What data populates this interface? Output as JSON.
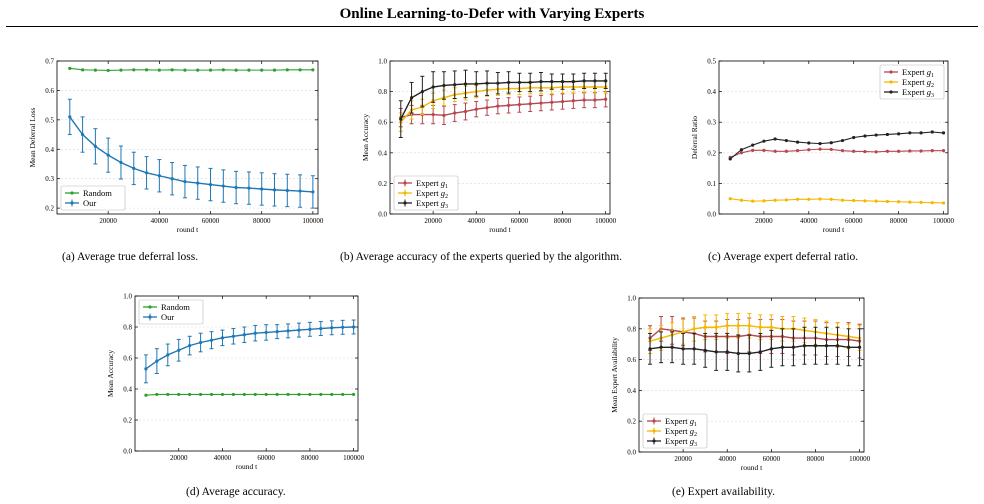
{
  "title": "Online Learning-to-Defer with Varying Experts",
  "captions": {
    "a": "(a) Average true deferral loss.",
    "b": "(b) Average accuracy of the experts queried by the algorithm.",
    "c": "(c) Average expert deferral ratio.",
    "d": "(d) Average accuracy.",
    "e": "(e) Expert availability."
  },
  "colors": {
    "random": "#2ca02c",
    "our": "#1f77b4",
    "g1": "#b5474f",
    "g2": "#f5b800",
    "g3": "#222222"
  },
  "chart_data": [
    {
      "id": "a",
      "type": "line",
      "xlabel": "round t",
      "ylabel": "Mean Deferral Loss",
      "xlim": [
        0,
        102000
      ],
      "ylim": [
        0.18,
        0.7
      ],
      "yticks": [
        0.2,
        0.3,
        0.4,
        0.5,
        0.6,
        0.7
      ],
      "ytick_labels": [
        "0.2",
        "0.3",
        "0.4",
        "0.5",
        "0.6",
        "0.7"
      ],
      "xticks": [
        20000,
        40000,
        60000,
        80000,
        100000
      ],
      "xtick_labels": [
        "20000",
        "40000",
        "60000",
        "80000",
        "100000"
      ],
      "legend_position": "bottom-left",
      "x": [
        5000,
        10000,
        15000,
        20000,
        25000,
        30000,
        35000,
        40000,
        45000,
        50000,
        55000,
        60000,
        65000,
        70000,
        75000,
        80000,
        85000,
        90000,
        95000,
        100000
      ],
      "series": [
        {
          "name": "Random",
          "color": "random",
          "marker": "dot",
          "values": [
            0.675,
            0.67,
            0.669,
            0.668,
            0.669,
            0.67,
            0.67,
            0.669,
            0.67,
            0.669,
            0.669,
            0.669,
            0.67,
            0.669,
            0.669,
            0.669,
            0.669,
            0.67,
            0.67,
            0.67
          ]
        },
        {
          "name": "Our",
          "color": "our",
          "marker": "errorbar",
          "values": [
            0.51,
            0.45,
            0.41,
            0.38,
            0.355,
            0.335,
            0.32,
            0.31,
            0.3,
            0.29,
            0.285,
            0.28,
            0.275,
            0.27,
            0.268,
            0.265,
            0.262,
            0.26,
            0.258,
            0.255
          ],
          "errors": [
            0.06,
            0.06,
            0.06,
            0.058,
            0.056,
            0.055,
            0.055,
            0.055,
            0.055,
            0.055,
            0.055,
            0.055,
            0.055,
            0.055,
            0.055,
            0.055,
            0.055,
            0.055,
            0.055,
            0.055
          ]
        }
      ]
    },
    {
      "id": "b",
      "type": "line",
      "xlabel": "round t",
      "ylabel": "Mean Accuracy",
      "xlim": [
        0,
        102000
      ],
      "ylim": [
        0.0,
        1.0
      ],
      "yticks": [
        0.0,
        0.2,
        0.4,
        0.6,
        0.8,
        1.0
      ],
      "ytick_labels": [
        "0.0",
        "0.2",
        "0.4",
        "0.6",
        "0.8",
        "1.0"
      ],
      "xticks": [
        20000,
        40000,
        60000,
        80000,
        100000
      ],
      "xtick_labels": [
        "20000",
        "40000",
        "60000",
        "80000",
        "100000"
      ],
      "legend_position": "bottom-left",
      "x": [
        5000,
        10000,
        15000,
        20000,
        25000,
        30000,
        35000,
        40000,
        45000,
        50000,
        55000,
        60000,
        65000,
        70000,
        75000,
        80000,
        85000,
        90000,
        95000,
        100000
      ],
      "series": [
        {
          "name": "Expert g1",
          "sub": "1",
          "color": "g1",
          "marker": "errorbar",
          "values": [
            0.63,
            0.65,
            0.65,
            0.65,
            0.645,
            0.66,
            0.67,
            0.685,
            0.695,
            0.705,
            0.71,
            0.715,
            0.72,
            0.725,
            0.73,
            0.735,
            0.74,
            0.745,
            0.745,
            0.75
          ],
          "errors": [
            0.06,
            0.06,
            0.06,
            0.06,
            0.06,
            0.055,
            0.055,
            0.05,
            0.05,
            0.05,
            0.05,
            0.05,
            0.05,
            0.05,
            0.05,
            0.05,
            0.05,
            0.05,
            0.05,
            0.05
          ]
        },
        {
          "name": "Expert g2",
          "sub": "2",
          "color": "g2",
          "marker": "errorbar",
          "values": [
            0.6,
            0.68,
            0.7,
            0.74,
            0.76,
            0.78,
            0.79,
            0.8,
            0.81,
            0.815,
            0.82,
            0.82,
            0.825,
            0.825,
            0.825,
            0.83,
            0.83,
            0.83,
            0.83,
            0.83
          ],
          "errors": [
            0.06,
            0.06,
            0.05,
            0.05,
            0.05,
            0.045,
            0.045,
            0.04,
            0.04,
            0.04,
            0.04,
            0.04,
            0.04,
            0.04,
            0.04,
            0.04,
            0.04,
            0.04,
            0.04,
            0.04
          ]
        },
        {
          "name": "Expert g3",
          "sub": "3",
          "color": "g3",
          "marker": "errorbar",
          "values": [
            0.62,
            0.76,
            0.8,
            0.83,
            0.84,
            0.845,
            0.85,
            0.85,
            0.855,
            0.855,
            0.86,
            0.86,
            0.86,
            0.865,
            0.865,
            0.865,
            0.865,
            0.87,
            0.87,
            0.87
          ],
          "errors": [
            0.12,
            0.1,
            0.1,
            0.1,
            0.09,
            0.09,
            0.09,
            0.08,
            0.08,
            0.07,
            0.07,
            0.06,
            0.06,
            0.06,
            0.05,
            0.05,
            0.05,
            0.05,
            0.05,
            0.05
          ]
        }
      ]
    },
    {
      "id": "c",
      "type": "line",
      "xlabel": "round t",
      "ylabel": "Deferral Ratio",
      "xlim": [
        0,
        102000
      ],
      "ylim": [
        0.0,
        0.5
      ],
      "yticks": [
        0.0,
        0.1,
        0.2,
        0.3,
        0.4,
        0.5
      ],
      "ytick_labels": [
        "0.0",
        "0.1",
        "0.2",
        "0.3",
        "0.4",
        "0.5"
      ],
      "xticks": [
        20000,
        40000,
        60000,
        80000,
        100000
      ],
      "xtick_labels": [
        "20000",
        "40000",
        "60000",
        "80000",
        "100000"
      ],
      "legend_position": "top-right",
      "x": [
        5000,
        10000,
        15000,
        20000,
        25000,
        30000,
        35000,
        40000,
        45000,
        50000,
        55000,
        60000,
        65000,
        70000,
        75000,
        80000,
        85000,
        90000,
        95000,
        100000
      ],
      "series": [
        {
          "name": "Expert g1",
          "sub": "1",
          "color": "g1",
          "marker": "dot",
          "values": [
            0.185,
            0.2,
            0.208,
            0.208,
            0.205,
            0.205,
            0.207,
            0.21,
            0.212,
            0.211,
            0.207,
            0.205,
            0.204,
            0.203,
            0.205,
            0.205,
            0.206,
            0.206,
            0.207,
            0.207
          ]
        },
        {
          "name": "Expert g2",
          "sub": "2",
          "color": "g2",
          "marker": "dot",
          "values": [
            0.05,
            0.045,
            0.042,
            0.043,
            0.045,
            0.046,
            0.048,
            0.048,
            0.049,
            0.048,
            0.045,
            0.044,
            0.043,
            0.042,
            0.041,
            0.04,
            0.039,
            0.038,
            0.037,
            0.036
          ]
        },
        {
          "name": "Expert g3",
          "sub": "3",
          "color": "g3",
          "marker": "dot",
          "values": [
            0.18,
            0.21,
            0.225,
            0.238,
            0.245,
            0.24,
            0.235,
            0.232,
            0.23,
            0.233,
            0.24,
            0.25,
            0.255,
            0.258,
            0.26,
            0.262,
            0.265,
            0.265,
            0.268,
            0.265
          ]
        }
      ]
    },
    {
      "id": "d",
      "type": "line",
      "xlabel": "round t",
      "ylabel": "Mean Accuracy",
      "xlim": [
        0,
        102000
      ],
      "ylim": [
        0.0,
        1.0
      ],
      "yticks": [
        0.0,
        0.2,
        0.4,
        0.6,
        0.8,
        1.0
      ],
      "ytick_labels": [
        "0.0",
        "0.2",
        "0.4",
        "0.6",
        "0.8",
        "1.0"
      ],
      "xticks": [
        20000,
        40000,
        60000,
        80000,
        100000
      ],
      "xtick_labels": [
        "20000",
        "40000",
        "60000",
        "80000",
        "100000"
      ],
      "legend_position": "top-left",
      "x": [
        5000,
        10000,
        15000,
        20000,
        25000,
        30000,
        35000,
        40000,
        45000,
        50000,
        55000,
        60000,
        65000,
        70000,
        75000,
        80000,
        85000,
        90000,
        95000,
        100000
      ],
      "series": [
        {
          "name": "Random",
          "color": "random",
          "marker": "dot",
          "values": [
            0.36,
            0.365,
            0.365,
            0.365,
            0.365,
            0.365,
            0.365,
            0.365,
            0.365,
            0.365,
            0.365,
            0.365,
            0.365,
            0.365,
            0.365,
            0.365,
            0.365,
            0.365,
            0.365,
            0.365
          ]
        },
        {
          "name": "Our",
          "color": "our",
          "marker": "errorbar",
          "values": [
            0.53,
            0.58,
            0.62,
            0.65,
            0.68,
            0.7,
            0.715,
            0.73,
            0.74,
            0.75,
            0.76,
            0.765,
            0.77,
            0.775,
            0.78,
            0.785,
            0.79,
            0.795,
            0.798,
            0.8
          ],
          "errors": [
            0.09,
            0.08,
            0.07,
            0.07,
            0.06,
            0.06,
            0.055,
            0.05,
            0.05,
            0.05,
            0.05,
            0.05,
            0.045,
            0.045,
            0.045,
            0.045,
            0.045,
            0.045,
            0.045,
            0.045
          ]
        }
      ]
    },
    {
      "id": "e",
      "type": "line",
      "xlabel": "round t",
      "ylabel": "Mean Expert Availability",
      "xlim": [
        0,
        102000
      ],
      "ylim": [
        0.0,
        1.0
      ],
      "yticks": [
        0.0,
        0.2,
        0.4,
        0.6,
        0.8,
        1.0
      ],
      "ytick_labels": [
        "0.0",
        "0.2",
        "0.4",
        "0.6",
        "0.8",
        "1.0"
      ],
      "xticks": [
        20000,
        40000,
        60000,
        80000,
        100000
      ],
      "xtick_labels": [
        "20000",
        "40000",
        "60000",
        "80000",
        "100000"
      ],
      "legend_position": "bottom-left",
      "x": [
        5000,
        10000,
        15000,
        20000,
        25000,
        30000,
        35000,
        40000,
        45000,
        50000,
        55000,
        60000,
        65000,
        70000,
        75000,
        80000,
        85000,
        90000,
        95000,
        100000
      ],
      "series": [
        {
          "name": "Expert g1",
          "sub": "1",
          "color": "g1",
          "marker": "errorbar",
          "values": [
            0.74,
            0.8,
            0.79,
            0.78,
            0.77,
            0.75,
            0.75,
            0.75,
            0.75,
            0.76,
            0.75,
            0.75,
            0.75,
            0.74,
            0.74,
            0.74,
            0.73,
            0.73,
            0.73,
            0.72
          ],
          "errors": [
            0.08,
            0.08,
            0.09,
            0.09,
            0.1,
            0.1,
            0.1,
            0.11,
            0.11,
            0.11,
            0.11,
            0.11,
            0.11,
            0.11,
            0.11,
            0.11,
            0.11,
            0.11,
            0.11,
            0.11
          ]
        },
        {
          "name": "Expert g2",
          "sub": "2",
          "color": "g2",
          "marker": "errorbar",
          "values": [
            0.72,
            0.74,
            0.76,
            0.78,
            0.8,
            0.81,
            0.81,
            0.82,
            0.82,
            0.82,
            0.81,
            0.81,
            0.8,
            0.8,
            0.79,
            0.78,
            0.77,
            0.76,
            0.75,
            0.74
          ],
          "errors": [
            0.08,
            0.08,
            0.08,
            0.08,
            0.08,
            0.08,
            0.08,
            0.08,
            0.08,
            0.08,
            0.08,
            0.08,
            0.08,
            0.08,
            0.08,
            0.08,
            0.08,
            0.08,
            0.08,
            0.08
          ]
        },
        {
          "name": "Expert g3",
          "sub": "3",
          "color": "g3",
          "marker": "errorbar",
          "values": [
            0.67,
            0.68,
            0.68,
            0.67,
            0.67,
            0.66,
            0.65,
            0.65,
            0.64,
            0.64,
            0.65,
            0.67,
            0.68,
            0.68,
            0.69,
            0.69,
            0.69,
            0.69,
            0.68,
            0.68
          ],
          "errors": [
            0.1,
            0.1,
            0.1,
            0.1,
            0.1,
            0.11,
            0.12,
            0.12,
            0.12,
            0.12,
            0.12,
            0.12,
            0.12,
            0.12,
            0.12,
            0.12,
            0.12,
            0.12,
            0.12,
            0.12
          ]
        }
      ]
    }
  ]
}
